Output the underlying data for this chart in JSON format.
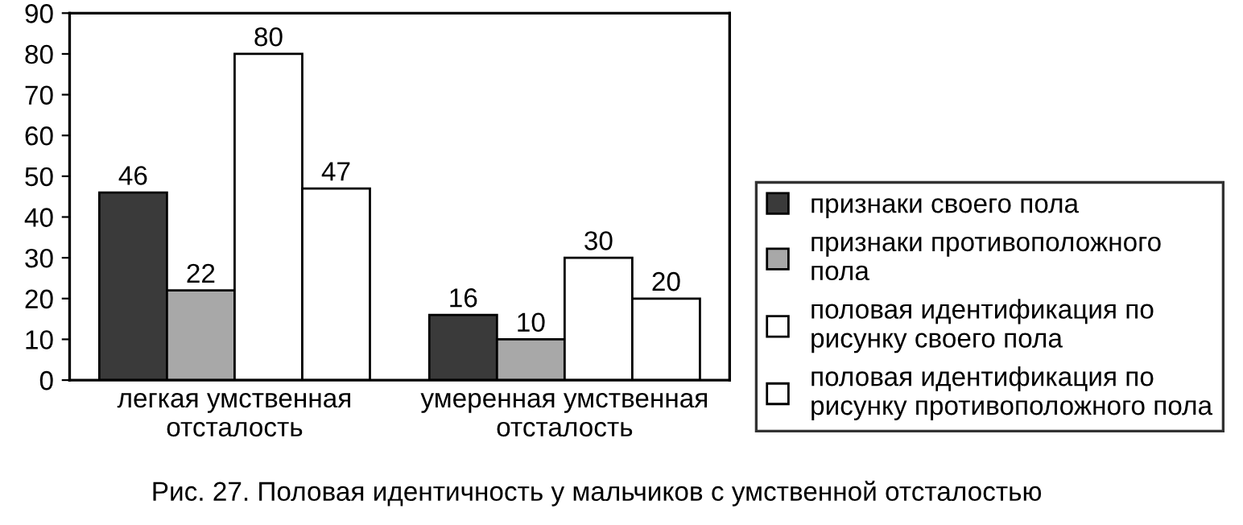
{
  "chart_data": {
    "type": "bar",
    "categories": [
      "легкая умственная\nотсталость",
      "умеренная умственная\nотсталость"
    ],
    "series": [
      {
        "name": "признаки своего пола",
        "color": "#3a3a3a",
        "values": [
          46,
          16
        ]
      },
      {
        "name": "признаки противоположного\nпола",
        "color": "#a8a8a8",
        "values": [
          22,
          10
        ]
      },
      {
        "name": "половая идентификация по\nрисунку своего пола",
        "color": "#ffffff",
        "values": [
          80,
          30
        ]
      },
      {
        "name": "половая идентификация по\nрисунку противоположного пола",
        "color": "#ffffff",
        "values": [
          47,
          20
        ]
      }
    ],
    "ylim": [
      0,
      90
    ],
    "yticks": [
      0,
      10,
      20,
      30,
      40,
      50,
      60,
      70,
      80,
      90
    ],
    "data_labels": true,
    "grid": false,
    "legend": "right",
    "annotations": [
      "Рис. 27. Половая идентичность у мальчиков с умственной отсталостью"
    ]
  }
}
